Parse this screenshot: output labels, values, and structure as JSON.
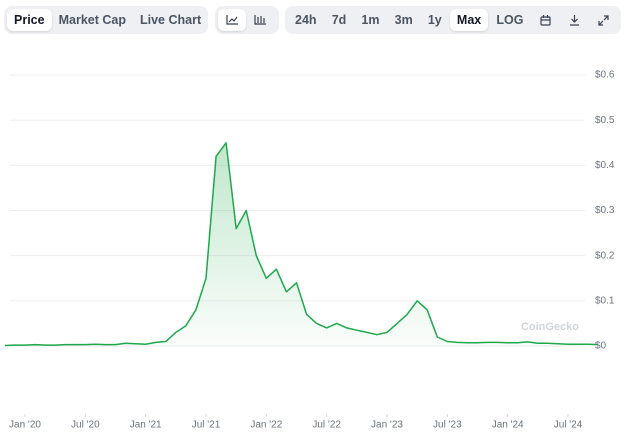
{
  "toolbar": {
    "views": [
      "Price",
      "Market Cap",
      "Live Chart"
    ],
    "ranges": [
      "24h",
      "7d",
      "1m",
      "3m",
      "1y",
      "Max",
      "LOG"
    ]
  },
  "chart_data": {
    "type": "line",
    "watermark": "CoinGecko",
    "color": "#1ea84a",
    "grid": true,
    "x": [
      "2019-11",
      "2019-12",
      "2020-01",
      "2020-02",
      "2020-03",
      "2020-04",
      "2020-05",
      "2020-06",
      "2020-07",
      "2020-08",
      "2020-09",
      "2020-10",
      "2020-11",
      "2020-12",
      "2021-01",
      "2021-02",
      "2021-03",
      "2021-04",
      "2021-05",
      "2021-06",
      "2021-07",
      "2021-08",
      "2021-09",
      "2021-10",
      "2021-11",
      "2021-12",
      "2022-01",
      "2022-02",
      "2022-03",
      "2022-04",
      "2022-05",
      "2022-06",
      "2022-07",
      "2022-08",
      "2022-09",
      "2022-10",
      "2022-11",
      "2022-12",
      "2023-01",
      "2023-02",
      "2023-03",
      "2023-04",
      "2023-05",
      "2023-06",
      "2023-07",
      "2023-08",
      "2023-09",
      "2023-10",
      "2023-11",
      "2023-12",
      "2024-01",
      "2024-02",
      "2024-03",
      "2024-04",
      "2024-05",
      "2024-06",
      "2024-07",
      "2024-08",
      "2024-09",
      "2024-10"
    ],
    "values": [
      0.001,
      0.002,
      0.002,
      0.003,
      0.002,
      0.002,
      0.003,
      0.003,
      0.003,
      0.004,
      0.003,
      0.003,
      0.006,
      0.005,
      0.004,
      0.008,
      0.01,
      0.03,
      0.045,
      0.08,
      0.15,
      0.42,
      0.45,
      0.26,
      0.3,
      0.2,
      0.15,
      0.17,
      0.12,
      0.14,
      0.07,
      0.05,
      0.04,
      0.05,
      0.04,
      0.035,
      0.03,
      0.025,
      0.03,
      0.05,
      0.07,
      0.1,
      0.08,
      0.02,
      0.01,
      0.008,
      0.007,
      0.007,
      0.008,
      0.008,
      0.007,
      0.007,
      0.009,
      0.006,
      0.006,
      0.005,
      0.004,
      0.004,
      0.004,
      0.003
    ],
    "ylim": [
      0,
      0.6
    ],
    "yticks": [
      {
        "value": 0,
        "label": "$0"
      },
      {
        "value": 0.1,
        "label": "$0.1"
      },
      {
        "value": 0.2,
        "label": "$0.2"
      },
      {
        "value": 0.3,
        "label": "$0.3"
      },
      {
        "value": 0.4,
        "label": "$0.4"
      },
      {
        "value": 0.5,
        "label": "$0.5"
      },
      {
        "value": 0.6,
        "label": "$0.6"
      }
    ],
    "xticks": [
      {
        "value": "2020-01",
        "label": "Jan '20"
      },
      {
        "value": "2020-07",
        "label": "Jul '20"
      },
      {
        "value": "2021-01",
        "label": "Jan '21"
      },
      {
        "value": "2021-07",
        "label": "Jul '21"
      },
      {
        "value": "2022-01",
        "label": "Jan '22"
      },
      {
        "value": "2022-07",
        "label": "Jul '22"
      },
      {
        "value": "2023-01",
        "label": "Jan '23"
      },
      {
        "value": "2023-07",
        "label": "Jul '23"
      },
      {
        "value": "2024-01",
        "label": "Jan '24"
      },
      {
        "value": "2024-07",
        "label": "Jul '24"
      }
    ]
  }
}
